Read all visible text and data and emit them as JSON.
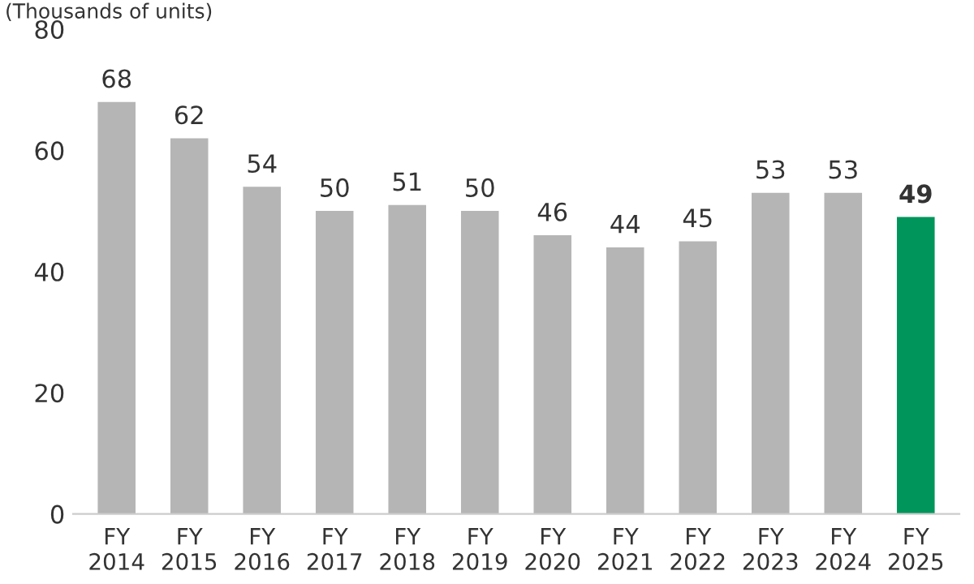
{
  "chart_data": {
    "type": "bar",
    "ylabel": "(Thousands of units)",
    "categories": [
      "FY\n2014",
      "FY\n2015",
      "FY\n2016",
      "FY\n2017",
      "FY\n2018",
      "FY\n2019",
      "FY\n2020",
      "FY\n2021",
      "FY\n2022",
      "FY\n2023",
      "FY\n2024",
      "FY\n2025"
    ],
    "values": [
      68,
      62,
      54,
      50,
      51,
      50,
      46,
      44,
      45,
      53,
      53,
      49
    ],
    "colors": [
      "#b5b5b5",
      "#b5b5b5",
      "#b5b5b5",
      "#b5b5b5",
      "#b5b5b5",
      "#b5b5b5",
      "#b5b5b5",
      "#b5b5b5",
      "#b5b5b5",
      "#b5b5b5",
      "#b5b5b5",
      "#00955a"
    ],
    "ylim": [
      0,
      80
    ],
    "yticks": [
      0,
      20,
      40,
      60,
      80
    ],
    "grid": false,
    "data_labels": true
  }
}
